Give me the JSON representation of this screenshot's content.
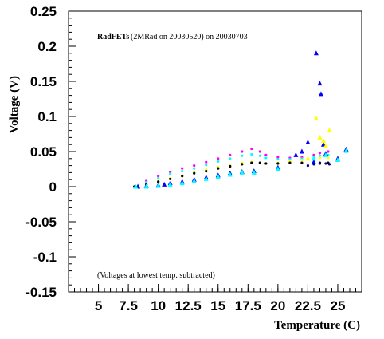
{
  "chart_data": {
    "type": "scatter",
    "title": "",
    "xlabel": "Temperature (C)",
    "ylabel": "Voltage (V)",
    "xlim": [
      2.5,
      27
    ],
    "ylim": [
      -0.15,
      0.25
    ],
    "x_ticks": [
      5,
      7.5,
      10,
      12.5,
      15,
      17.5,
      20,
      22.5,
      25
    ],
    "x_tick_labels": [
      "5",
      "7.5",
      "10",
      "12.5",
      "15",
      "17.5",
      "20",
      "22.5",
      "25"
    ],
    "y_ticks": [
      -0.15,
      -0.1,
      -0.05,
      0,
      0.05,
      0.1,
      0.15,
      0.2,
      0.25
    ],
    "y_tick_labels": [
      "-0.15",
      "-0.1",
      "-0.05",
      "0",
      "0.05",
      "0.1",
      "0.15",
      "0.2",
      "0.25"
    ],
    "annotations": {
      "header_bold": "RadFETs",
      "header_rest": " (2MRad on 20030520) on 20030703",
      "footer": "(Voltages at lowest temp. subtracted)"
    },
    "grid": false,
    "legend": "none",
    "series": [
      {
        "color": "#ff00ff",
        "marker": "dot",
        "points": [
          [
            8.0,
            0.0
          ],
          [
            9.0,
            0.008
          ],
          [
            10.0,
            0.015
          ],
          [
            11.0,
            0.021
          ],
          [
            12.0,
            0.026
          ],
          [
            13.0,
            0.03
          ],
          [
            14.0,
            0.035
          ],
          [
            15.0,
            0.04
          ],
          [
            16.0,
            0.045
          ],
          [
            17.0,
            0.05
          ],
          [
            17.8,
            0.054
          ],
          [
            18.5,
            0.05
          ],
          [
            19.0,
            0.045
          ],
          [
            20.0,
            0.042
          ],
          [
            21.0,
            0.041
          ],
          [
            22.0,
            0.042
          ],
          [
            23.0,
            0.045
          ],
          [
            23.5,
            0.048
          ],
          [
            24.2,
            0.05
          ]
        ]
      },
      {
        "color": "#00ffff",
        "marker": "dot",
        "points": [
          [
            8.0,
            0.0
          ],
          [
            9.0,
            0.006
          ],
          [
            10.0,
            0.012
          ],
          [
            11.0,
            0.018
          ],
          [
            12.0,
            0.022
          ],
          [
            13.0,
            0.026
          ],
          [
            14.0,
            0.031
          ],
          [
            15.0,
            0.036
          ],
          [
            16.0,
            0.04
          ],
          [
            17.0,
            0.044
          ],
          [
            17.8,
            0.046
          ],
          [
            18.5,
            0.044
          ],
          [
            19.0,
            0.041
          ],
          [
            20.0,
            0.039
          ],
          [
            21.0,
            0.039
          ],
          [
            22.0,
            0.04
          ],
          [
            23.0,
            0.042
          ],
          [
            23.5,
            0.044
          ],
          [
            24.2,
            0.045
          ]
        ]
      },
      {
        "color": "#ffff00",
        "marker": "dot",
        "points": [
          [
            8.0,
            0.0
          ],
          [
            9.0,
            0.004
          ],
          [
            10.0,
            0.008
          ],
          [
            11.0,
            0.012
          ],
          [
            12.0,
            0.016
          ],
          [
            13.0,
            0.02
          ],
          [
            14.0,
            0.024
          ],
          [
            15.0,
            0.028
          ],
          [
            16.0,
            0.031
          ],
          [
            17.0,
            0.034
          ],
          [
            17.8,
            0.035
          ],
          [
            18.5,
            0.034
          ],
          [
            19.0,
            0.033
          ],
          [
            20.0,
            0.034
          ],
          [
            21.0,
            0.036
          ],
          [
            22.0,
            0.038
          ],
          [
            23.0,
            0.04
          ],
          [
            23.5,
            0.041
          ],
          [
            24.2,
            0.041
          ]
        ]
      },
      {
        "color": "#000000",
        "marker": "dot",
        "points": [
          [
            8.0,
            0.0
          ],
          [
            9.0,
            0.003
          ],
          [
            10.0,
            0.007
          ],
          [
            11.0,
            0.011
          ],
          [
            12.0,
            0.015
          ],
          [
            13.0,
            0.019
          ],
          [
            14.0,
            0.022
          ],
          [
            15.0,
            0.026
          ],
          [
            16.0,
            0.029
          ],
          [
            17.0,
            0.032
          ],
          [
            17.8,
            0.034
          ],
          [
            18.5,
            0.034
          ],
          [
            19.0,
            0.033
          ],
          [
            20.0,
            0.033
          ],
          [
            21.0,
            0.034
          ],
          [
            22.0,
            0.034
          ],
          [
            23.0,
            0.035
          ],
          [
            23.5,
            0.034
          ],
          [
            24.2,
            0.034
          ]
        ]
      },
      {
        "color": "#000080",
        "marker": "dot",
        "points": [
          [
            22.5,
            0.03
          ],
          [
            23.0,
            0.032
          ],
          [
            23.5,
            0.033
          ],
          [
            24.0,
            0.033
          ],
          [
            24.3,
            0.032
          ]
        ]
      },
      {
        "color": "#0000ff",
        "marker": "triangle",
        "points": [
          [
            8.3,
            0.0
          ],
          [
            9.0,
            0.001
          ],
          [
            10.0,
            0.002
          ],
          [
            10.5,
            0.003
          ],
          [
            11.0,
            0.005
          ],
          [
            12.0,
            0.007
          ],
          [
            13.0,
            0.01
          ],
          [
            14.0,
            0.013
          ],
          [
            15.0,
            0.016
          ],
          [
            16.0,
            0.019
          ],
          [
            17.0,
            0.021
          ],
          [
            18.0,
            0.022
          ],
          [
            20.0,
            0.027
          ],
          [
            21.5,
            0.045
          ],
          [
            22.0,
            0.05
          ],
          [
            22.5,
            0.063
          ],
          [
            23.0,
            0.035
          ],
          [
            23.2,
            0.19
          ],
          [
            23.5,
            0.147
          ],
          [
            23.6,
            0.132
          ],
          [
            23.8,
            0.06
          ],
          [
            24.0,
            0.047
          ],
          [
            25.0,
            0.04
          ],
          [
            25.7,
            0.053
          ]
        ]
      },
      {
        "color": "#00ffff",
        "marker": "triangle",
        "points": [
          [
            8.1,
            0.0
          ],
          [
            9.0,
            0.0
          ],
          [
            10.0,
            0.001
          ],
          [
            11.0,
            0.003
          ],
          [
            12.0,
            0.005
          ],
          [
            13.0,
            0.008
          ],
          [
            14.0,
            0.011
          ],
          [
            15.0,
            0.014
          ],
          [
            16.0,
            0.017
          ],
          [
            17.0,
            0.02
          ],
          [
            18.0,
            0.02
          ],
          [
            20.0,
            0.025
          ],
          [
            23.0,
            0.04
          ],
          [
            24.0,
            0.045
          ],
          [
            25.0,
            0.038
          ],
          [
            25.7,
            0.051
          ]
        ]
      },
      {
        "color": "#ffff00",
        "marker": "triangle",
        "points": [
          [
            23.2,
            0.097
          ],
          [
            23.5,
            0.07
          ],
          [
            23.8,
            0.065
          ],
          [
            24.0,
            0.058
          ],
          [
            24.3,
            0.08
          ],
          [
            22.5,
            0.04
          ]
        ]
      }
    ]
  }
}
